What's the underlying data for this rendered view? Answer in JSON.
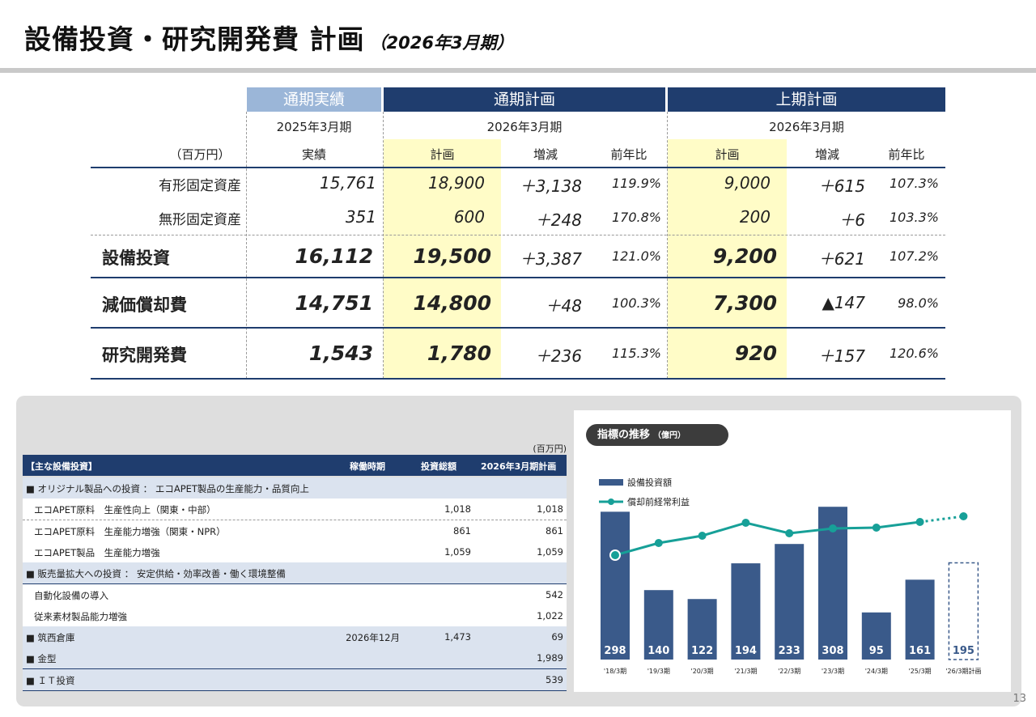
{
  "title": {
    "main": "設備投資・研究開発費 計画",
    "sub": "（2026年3月期）"
  },
  "upper_table": {
    "headers": {
      "actual": "通期実績",
      "plan_full": "通期計画",
      "plan_half": "上期計画"
    },
    "periods": {
      "actual": "2025年3月期",
      "plan_full": "2026年3月期",
      "plan_half": "2026年3月期"
    },
    "unit": "（百万円）",
    "cols": {
      "actual": "実績",
      "plan": "計画",
      "diff": "増減",
      "yoy": "前年比",
      "plan2": "計画",
      "diff2": "増減",
      "yoy2": "前年比"
    },
    "rows": [
      {
        "label": "有形固定資産",
        "actual": "15,761",
        "plan": "18,900",
        "diff": "＋3,138",
        "yoy": "119.9%",
        "plan2": "9,000",
        "diff2": "＋615",
        "yoy2": "107.3%"
      },
      {
        "label": "無形固定資産",
        "actual": "351",
        "plan": "600",
        "diff": "＋248",
        "yoy": "170.8%",
        "plan2": "200",
        "diff2": "＋6",
        "yoy2": "103.3%"
      },
      {
        "label": "設備投資",
        "actual": "16,112",
        "plan": "19,500",
        "diff": "＋3,387",
        "yoy": "121.0%",
        "plan2": "9,200",
        "diff2": "＋621",
        "yoy2": "107.2%"
      },
      {
        "label": "減価償却費",
        "actual": "14,751",
        "plan": "14,800",
        "diff": "＋48",
        "yoy": "100.3%",
        "plan2": "7,300",
        "diff2": "▲147",
        "yoy2": "98.0%"
      },
      {
        "label": "研究開発費",
        "actual": "1,543",
        "plan": "1,780",
        "diff": "＋236",
        "yoy": "115.3%",
        "plan2": "920",
        "diff2": "＋157",
        "yoy2": "120.6%"
      }
    ]
  },
  "lower_table": {
    "unit": "(百万円)",
    "headers": {
      "item": "【主な設備投資】",
      "timing": "稼働時期",
      "total": "投資総額",
      "plan": "2026年3月期計画"
    },
    "rows": [
      {
        "type": "group",
        "item": "■ オリジナル製品への投資 ： エコAPET製品の生産能力・品質向上",
        "timing": "",
        "total": "",
        "plan": ""
      },
      {
        "type": "item",
        "item": "エコAPET原料　生産性向上（関東・中部）",
        "timing": "",
        "total": "1,018",
        "plan": "1,018"
      },
      {
        "type": "item",
        "item": "エコAPET原料　生産能力増強（関東・NPR）",
        "timing": "",
        "total": "861",
        "plan": "861"
      },
      {
        "type": "item",
        "item": "エコAPET製品　生産能力増強",
        "timing": "",
        "total": "1,059",
        "plan": "1,059"
      },
      {
        "type": "group",
        "item": "■ 販売量拡大への投資 ： 安定供給・効率改善・働く環境整備",
        "timing": "",
        "total": "",
        "plan": ""
      },
      {
        "type": "item",
        "item": "自動化設備の導入",
        "timing": "",
        "total": "",
        "plan": "542"
      },
      {
        "type": "item",
        "item": "従来素材製品能力増強",
        "timing": "",
        "total": "",
        "plan": "1,022"
      },
      {
        "type": "group",
        "item": "■ 筑西倉庫",
        "timing": "2026年12月",
        "total": "1,473",
        "plan": "69"
      },
      {
        "type": "group",
        "item": "■ 金型",
        "timing": "",
        "total": "",
        "plan": "1,989"
      },
      {
        "type": "group",
        "item": "■ ＩＴ投資",
        "timing": "",
        "total": "",
        "plan": "539"
      }
    ]
  },
  "chart_title": {
    "main": "指標の推移",
    "unit": "（億円）"
  },
  "chart_data": {
    "type": "bar",
    "categories": [
      "'18/3期",
      "'19/3期",
      "'20/3期",
      "'21/3期",
      "'22/3期",
      "'23/3期",
      "'24/3期",
      "'25/3期",
      "'26/3期計画"
    ],
    "series": [
      {
        "name": "設備投資額",
        "type": "bar",
        "values": [
          298,
          140,
          122,
          194,
          233,
          308,
          95,
          161,
          195
        ],
        "color": "#3a5a8a",
        "forecast_last": true
      },
      {
        "name": "償却前経常利益",
        "type": "line",
        "color": "#17a098",
        "dotted_last_segment": true
      }
    ],
    "legend": "top-left",
    "value_labels": [
      "298",
      "140",
      "122",
      "194",
      "233",
      "308",
      "95",
      "161",
      "195"
    ]
  },
  "page_number": "13"
}
